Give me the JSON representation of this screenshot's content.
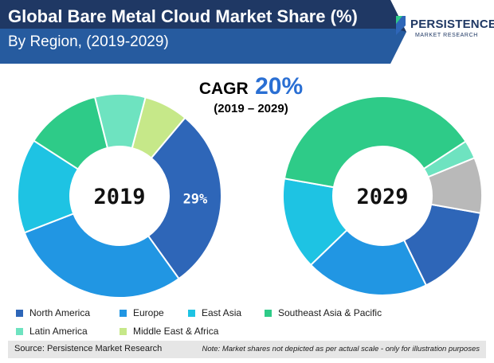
{
  "header": {
    "title_line1": "Global Bare Metal Cloud Market Share (%)",
    "title_line2": "By Region, (2019-2029)",
    "logo_word": "PERSISTENCE",
    "logo_sub": "MARKET RESEARCH"
  },
  "cagr": {
    "label": "CAGR",
    "value": "20%",
    "period": "(2019 – 2029)"
  },
  "chart_data": [
    {
      "type": "pie",
      "center_label": "2019",
      "categories": [
        "North America",
        "Europe",
        "East Asia",
        "Southeast Asia & Pacific",
        "Latin America",
        "Middle East & Africa"
      ],
      "values": [
        29,
        29,
        15,
        12,
        8,
        7
      ],
      "data_labels": {
        "North America": "29%"
      }
    },
    {
      "type": "pie",
      "center_label": "2029",
      "categories": [
        "North America",
        "Europe",
        "East Asia",
        "Southeast Asia & Pacific",
        "Latin America",
        "Middle East & Africa"
      ],
      "values": [
        15,
        20,
        15,
        38,
        3,
        9
      ]
    }
  ],
  "colors": {
    "North America": "#2e66b8",
    "Europe": "#2196e3",
    "East Asia": "#1ec3e3",
    "Southeast Asia & Pacific": "#2ecb88",
    "Latin America": "#6ee3c0",
    "Middle East & Africa": "#c6e889",
    "Middle East & Africa (2029)": "#b9b9b9"
  },
  "legend": [
    "North America",
    "Europe",
    "East Asia",
    "Southeast Asia & Pacific",
    "Latin America",
    "Middle East & Africa"
  ],
  "footer": {
    "source": "Source: Persistence Market Research",
    "note": "Note: Market shares not depicted as per actual scale - only for illustration purposes"
  }
}
